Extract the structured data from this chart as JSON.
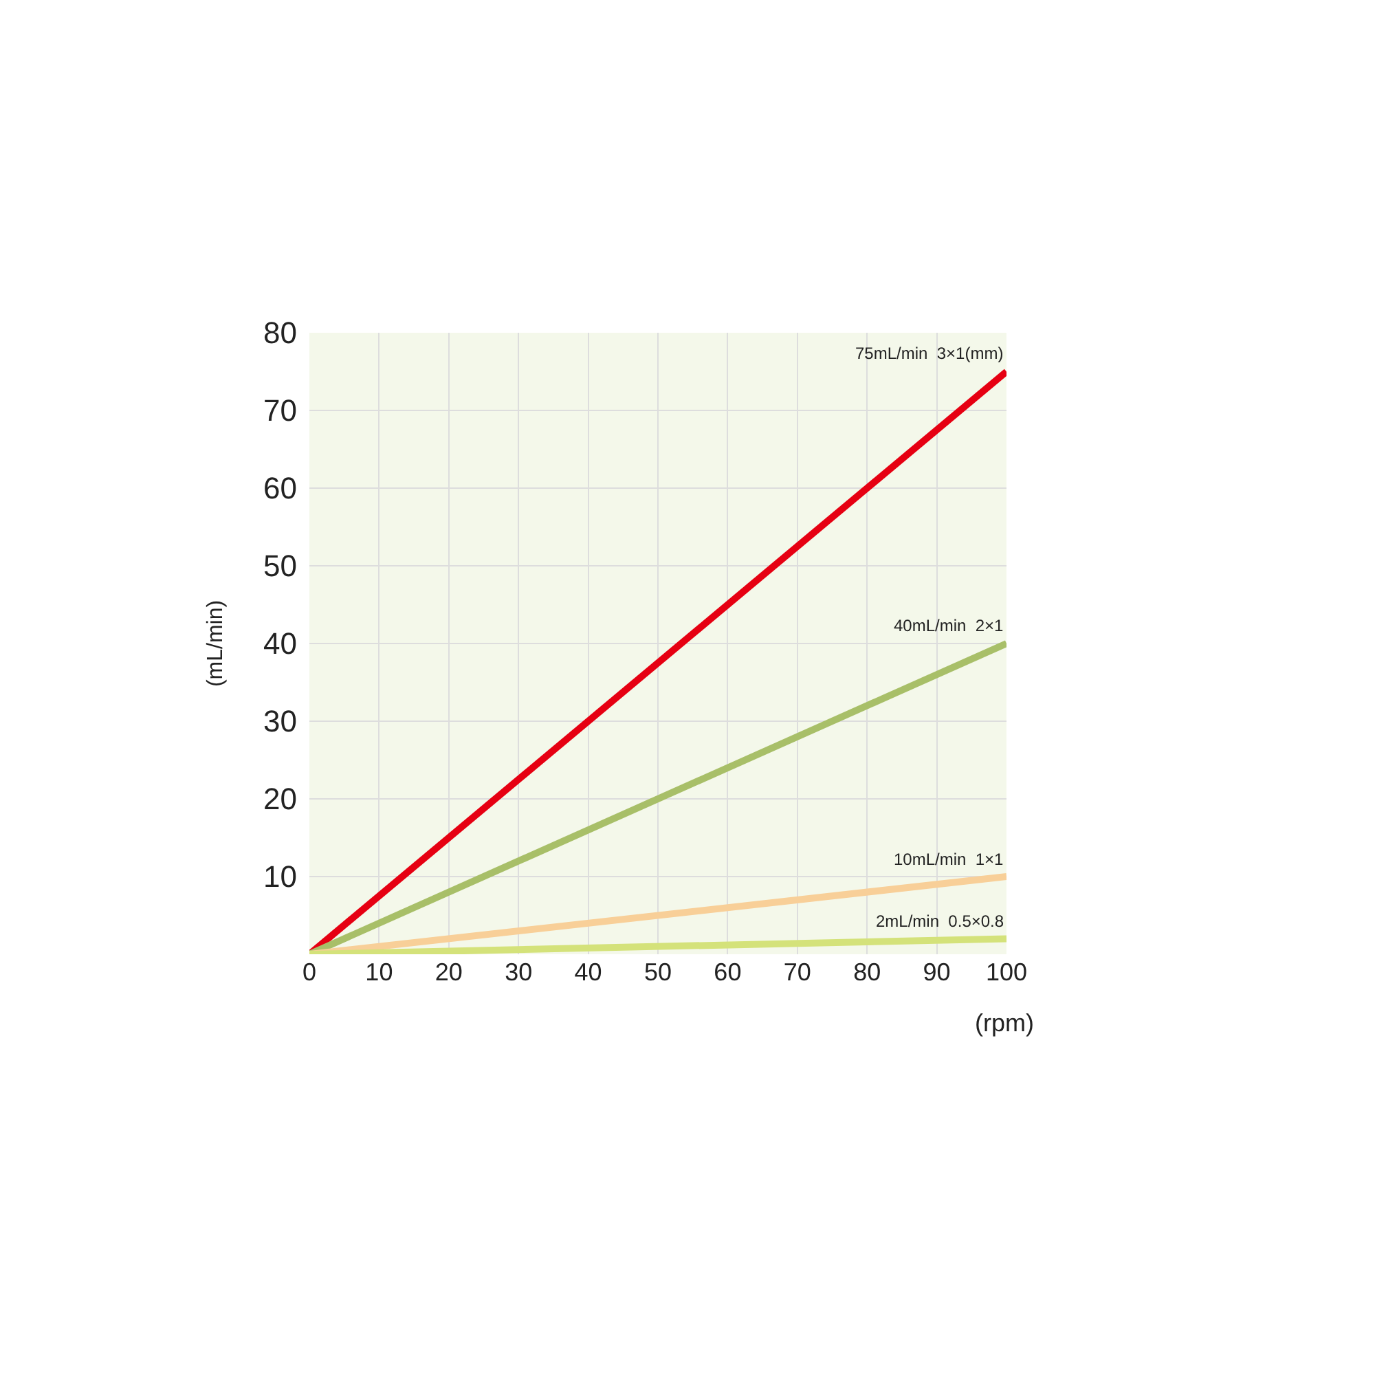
{
  "chart_data": {
    "type": "line",
    "xlabel": "(rpm)",
    "ylabel": "(mL/min)",
    "x": [
      0,
      100
    ],
    "series": [
      {
        "name": "75mL/min  3×1(mm)",
        "color": "#e60012",
        "values": [
          0,
          75
        ]
      },
      {
        "name": "40mL/min  2×1",
        "color": "#a8bf68",
        "values": [
          0,
          40
        ]
      },
      {
        "name": "10mL/min  1×1",
        "color": "#f8cf98",
        "values": [
          0,
          10
        ]
      },
      {
        "name": "2mL/min  0.5×0.8",
        "color": "#d4e27a",
        "values": [
          0,
          2
        ]
      }
    ],
    "xlim": [
      0,
      100
    ],
    "xticks": [
      0,
      10,
      20,
      30,
      40,
      50,
      60,
      70,
      80,
      90,
      100
    ],
    "ylim": [
      0,
      80
    ],
    "yticks": [
      10,
      20,
      30,
      40,
      50,
      60,
      70,
      80
    ],
    "grid": true,
    "legend": false,
    "marker": "none",
    "line_style": "solid"
  }
}
